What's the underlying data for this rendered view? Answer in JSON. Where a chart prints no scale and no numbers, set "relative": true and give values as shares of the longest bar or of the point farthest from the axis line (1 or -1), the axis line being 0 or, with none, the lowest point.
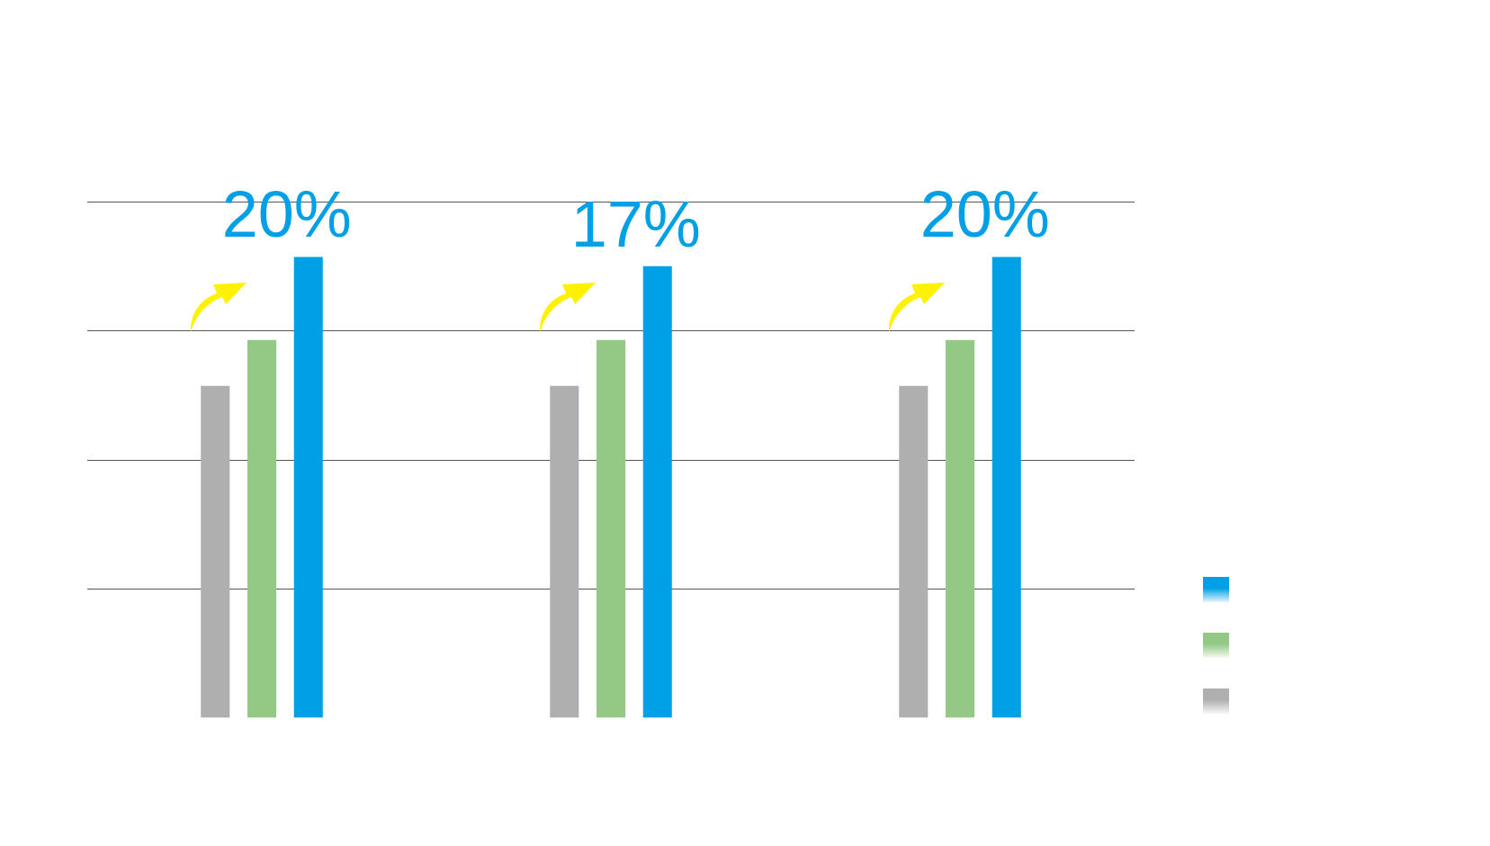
{
  "chart_data": {
    "type": "bar",
    "relative": true,
    "grid": "y",
    "legend": false,
    "categories": [
      null,
      null,
      null
    ],
    "series": [
      {
        "color": "#aeafae",
        "values": [
          0.72,
          0.72,
          0.72
        ]
      },
      {
        "color": "#93c985",
        "values": [
          0.82,
          0.82,
          0.82
        ]
      },
      {
        "color": "#00a0e6",
        "values": [
          1,
          0.98,
          1
        ]
      }
    ],
    "annotations": [
      "20%",
      "17%",
      "20%"
    ]
  }
}
